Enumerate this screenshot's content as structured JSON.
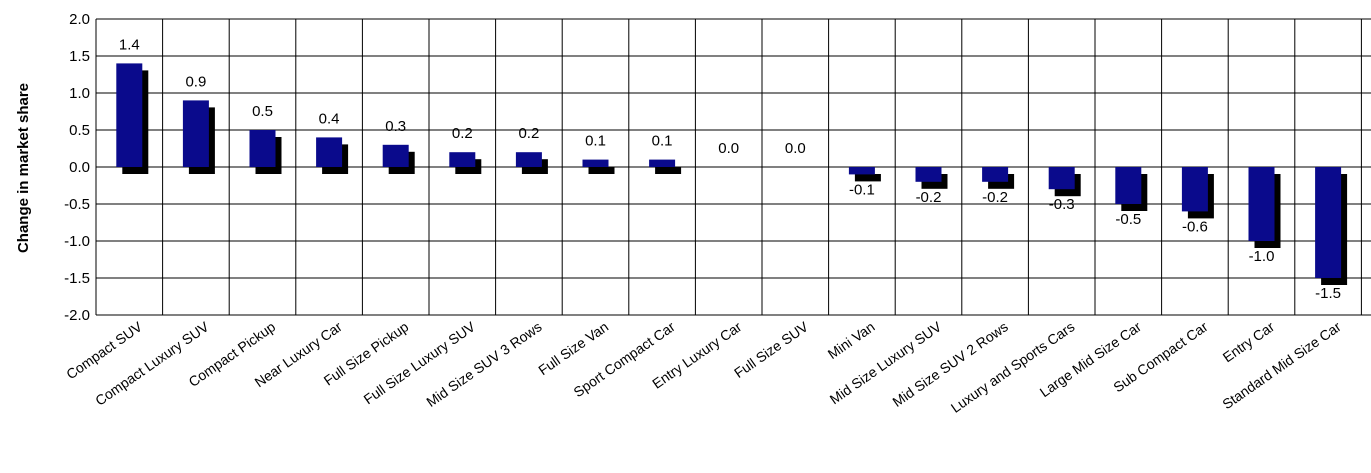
{
  "chart_data": {
    "type": "bar",
    "ylabel": "Change in market share",
    "ylim": [
      -2.0,
      2.0
    ],
    "yticks": [
      "2.0",
      "1.5",
      "1.0",
      "0.5",
      "0.0",
      "-0.5",
      "-1.0",
      "-1.5",
      "-2.0"
    ],
    "ytick_values": [
      2.0,
      1.5,
      1.0,
      0.5,
      0.0,
      -0.5,
      -1.0,
      -1.5,
      -2.0
    ],
    "grid": true,
    "categories": [
      "Compact SUV",
      "Compact Luxury SUV",
      "Compact Pickup",
      "Near Luxury Car",
      "Full Size Pickup",
      "Full Size Luxury SUV",
      "Mid Size SUV 3 Rows",
      "Full Size Van",
      "Sport Compact Car",
      "Entry Luxury Car",
      "Full Size SUV",
      "Mini Van",
      "Mid Size Luxury SUV",
      "Mid Size SUV 2 Rows",
      "Luxury and Sports Cars",
      "Large Mid Size Car",
      "Sub Compact Car",
      "Entry Car",
      "Standard Mid Size Car"
    ],
    "values": [
      1.4,
      0.9,
      0.5,
      0.4,
      0.3,
      0.2,
      0.2,
      0.1,
      0.1,
      0.0,
      0.0,
      -0.1,
      -0.2,
      -0.2,
      -0.3,
      -0.5,
      -0.6,
      -1.0,
      -1.5
    ],
    "value_labels": [
      "1.4",
      "0.9",
      "0.5",
      "0.4",
      "0.3",
      "0.2",
      "0.2",
      "0.1",
      "0.1",
      "0.0",
      "0.0",
      "-0.1",
      "-0.2",
      "-0.2",
      "-0.3",
      "-0.5",
      "-0.6",
      "-1.0",
      "-1.5"
    ],
    "colors": {
      "bar": "#0a0a8c",
      "shadow": "#000000",
      "grid": "#000000"
    }
  }
}
